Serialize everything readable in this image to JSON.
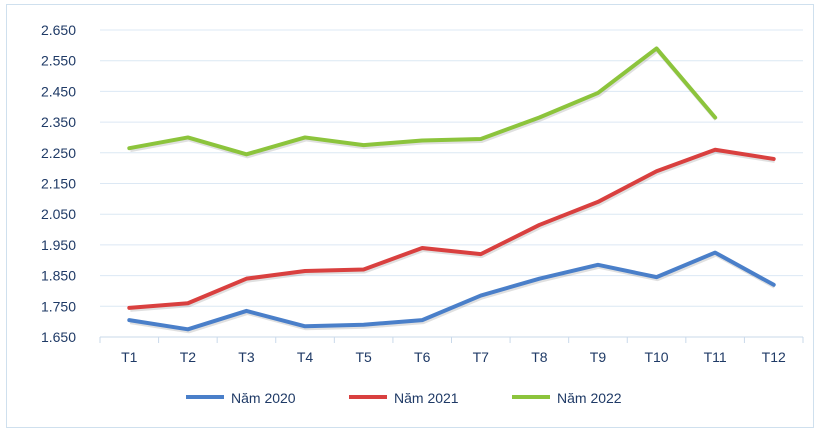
{
  "chart_data": {
    "type": "line",
    "title": "",
    "xlabel": "",
    "ylabel": "",
    "categories": [
      "T1",
      "T2",
      "T3",
      "T4",
      "T5",
      "T6",
      "T7",
      "T8",
      "T9",
      "T10",
      "T11",
      "T12"
    ],
    "ylim": [
      1.65,
      2.65
    ],
    "yticks": [
      1.65,
      1.75,
      1.85,
      1.95,
      2.05,
      2.15,
      2.25,
      2.35,
      2.45,
      2.55,
      2.65
    ],
    "ytick_labels": [
      "1.650",
      "1.750",
      "1.850",
      "1.950",
      "2.050",
      "2.150",
      "2.250",
      "2.350",
      "2.450",
      "2.550",
      "2.650"
    ],
    "grid": "horizontal",
    "legend_position": "bottom",
    "series": [
      {
        "name": "Năm 2020",
        "color": "#4a7fc9",
        "values": [
          1.705,
          1.675,
          1.735,
          1.685,
          1.69,
          1.705,
          1.785,
          1.84,
          1.885,
          1.845,
          1.925,
          1.82
        ]
      },
      {
        "name": "Năm 2021",
        "color": "#d9403f",
        "values": [
          1.745,
          1.76,
          1.84,
          1.865,
          1.87,
          1.94,
          1.92,
          2.015,
          2.09,
          2.19,
          2.26,
          2.23
        ]
      },
      {
        "name": "Năm 2022",
        "color": "#8cc43c",
        "values": [
          2.265,
          2.3,
          2.245,
          2.3,
          2.275,
          2.29,
          2.295,
          2.365,
          2.445,
          2.59,
          2.365,
          null
        ]
      }
    ]
  }
}
